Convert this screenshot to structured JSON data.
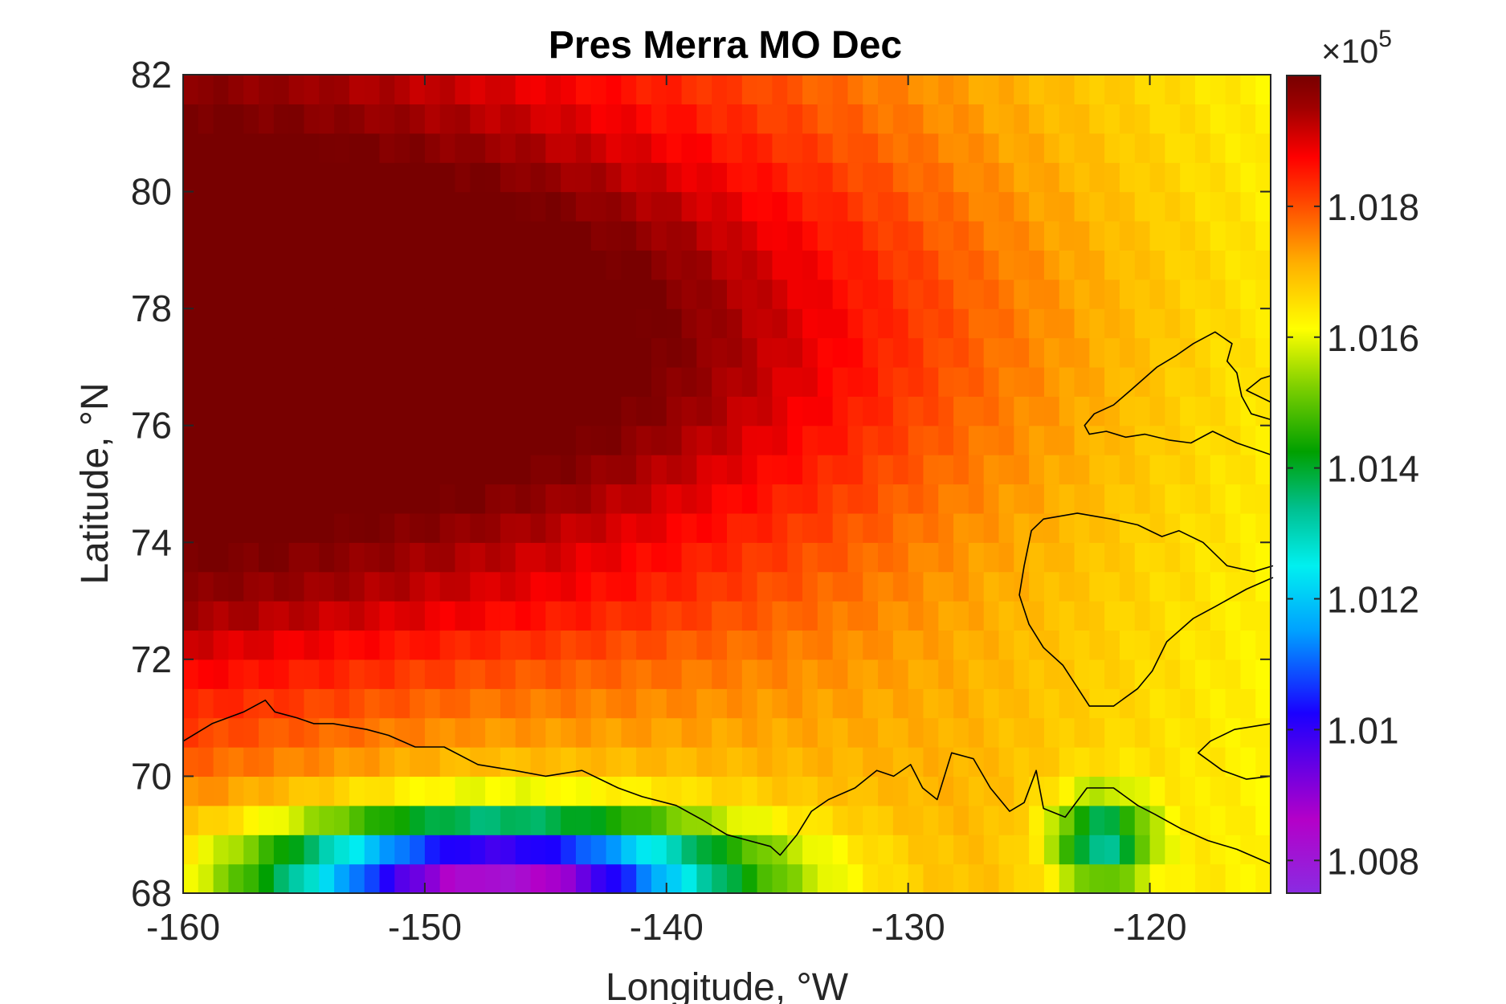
{
  "chart_data": {
    "type": "heatmap",
    "title": "Pres Merra MO Dec",
    "xlabel": "Longitude, °W",
    "ylabel": "Latitude, °N",
    "xlim": [
      -160,
      -115
    ],
    "ylim": [
      68,
      82
    ],
    "x_ticks": [
      "-160",
      "-150",
      "-140",
      "-130",
      "-120"
    ],
    "y_ticks": [
      "68",
      "70",
      "72",
      "74",
      "76",
      "78",
      "80",
      "82"
    ],
    "colorbar": {
      "colormap": "jet-like (purple-blue-cyan-green-yellow-orange-red-dark red)",
      "multiplier": "×10",
      "multiplier_exponent": "5",
      "tick_labels": [
        "1.018",
        "1.016",
        "1.014",
        "1.012",
        "1.01",
        "1.008"
      ],
      "tick_values": [
        1.018,
        1.016,
        1.014,
        1.012,
        1.01,
        1.008
      ],
      "range": [
        1.0075,
        1.02
      ]
    },
    "grid_resolution_deg": {
      "lon": 0.625,
      "lat": 0.5
    },
    "field_description_points": [
      {
        "lon": -155,
        "lat": 77.5,
        "value": 1.01995
      },
      {
        "lon": -140,
        "lat": 79,
        "value": 1.0193
      },
      {
        "lon": -128,
        "lat": 77,
        "value": 1.0183
      },
      {
        "lon": -118,
        "lat": 81,
        "value": 1.0165
      },
      {
        "lon": -150,
        "lat": 71.5,
        "value": 1.0165
      },
      {
        "lon": -150,
        "lat": 68.5,
        "value": 1.0085
      },
      {
        "lon": -122,
        "lat": 68.7,
        "value": 1.0138
      }
    ]
  }
}
